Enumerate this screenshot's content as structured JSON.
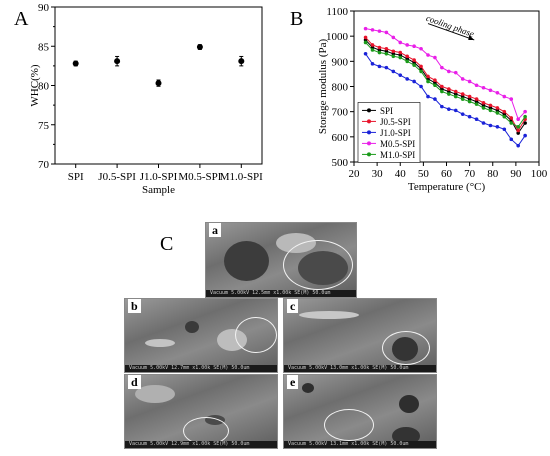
{
  "panels": {
    "a_label": "A",
    "b_label": "B",
    "c_label": "C"
  },
  "chart_data": [
    {
      "type": "scatter",
      "title": "",
      "xlabel": "Sample",
      "ylabel": "WHC(%)",
      "ylim": [
        70,
        90
      ],
      "yticks": [
        70,
        75,
        80,
        85,
        90
      ],
      "categories": [
        "SPI",
        "J0.5-SPI",
        "J1.0-SPI",
        "M0.5-SPI",
        "M1.0-SPI"
      ],
      "values": [
        82.8,
        83.1,
        80.3,
        84.9,
        83.1
      ],
      "errors": [
        0.3,
        0.6,
        0.4,
        0.3,
        0.6
      ]
    },
    {
      "type": "line",
      "title": "",
      "xlabel": "Temperature (°C)",
      "ylabel": "Storage modulus (Pa)",
      "xlim": [
        20,
        100
      ],
      "ylim": [
        500,
        1100
      ],
      "xticks": [
        20,
        30,
        40,
        50,
        60,
        70,
        80,
        90,
        100
      ],
      "yticks": [
        500,
        600,
        700,
        800,
        900,
        1000,
        1100
      ],
      "annotation": "cooling phase",
      "legend_position": "bottom-left",
      "x": [
        25,
        28,
        31,
        34,
        37,
        40,
        43,
        46,
        49,
        52,
        55,
        58,
        61,
        64,
        67,
        70,
        73,
        76,
        79,
        82,
        85,
        88,
        91,
        94
      ],
      "series": [
        {
          "name": "SPI",
          "color": "#000000",
          "values": [
            985,
            955,
            945,
            940,
            930,
            925,
            910,
            895,
            870,
            830,
            815,
            790,
            780,
            770,
            760,
            750,
            740,
            725,
            715,
            705,
            690,
            665,
            615,
            655
          ]
        },
        {
          "name": "J0.5-SPI",
          "color": "#e8132b",
          "values": [
            995,
            965,
            955,
            950,
            940,
            935,
            920,
            905,
            880,
            840,
            825,
            800,
            790,
            780,
            770,
            760,
            750,
            735,
            725,
            715,
            700,
            675,
            625,
            670
          ]
        },
        {
          "name": "J1.0-SPI",
          "color": "#1a22d8",
          "values": [
            930,
            890,
            880,
            875,
            860,
            845,
            830,
            820,
            800,
            760,
            750,
            720,
            710,
            705,
            690,
            680,
            670,
            655,
            645,
            640,
            630,
            590,
            565,
            605
          ]
        },
        {
          "name": "M0.5-SPI",
          "color": "#e91fe8",
          "values": [
            1030,
            1025,
            1020,
            1015,
            995,
            975,
            965,
            960,
            950,
            925,
            915,
            875,
            860,
            855,
            830,
            820,
            805,
            795,
            785,
            775,
            760,
            750,
            670,
            700
          ]
        },
        {
          "name": "M1.0-SPI",
          "color": "#1a9a1a",
          "values": [
            975,
            945,
            935,
            930,
            920,
            915,
            900,
            885,
            860,
            820,
            805,
            780,
            770,
            760,
            750,
            740,
            730,
            715,
            705,
            695,
            680,
            655,
            640,
            680
          ]
        }
      ]
    }
  ],
  "sem": {
    "images": [
      {
        "label": "a",
        "infobar": "Vacuum 5.00kV 12.5mm x1.00k SE(M)              50.0um"
      },
      {
        "label": "b",
        "infobar": "Vacuum 5.00kV 12.7mm x1.00k SE(M)          50.0um"
      },
      {
        "label": "c",
        "infobar": "Vacuum 5.00kV 13.0mm x1.00k SE(M)          50.0um"
      },
      {
        "label": "d",
        "infobar": "Vacuum 5.00kV 12.9mm x1.00k SE(M)          50.0um"
      },
      {
        "label": "e",
        "infobar": "Vacuum 5.00kV 13.1mm x1.00k SE(M)          50.0um"
      }
    ]
  }
}
